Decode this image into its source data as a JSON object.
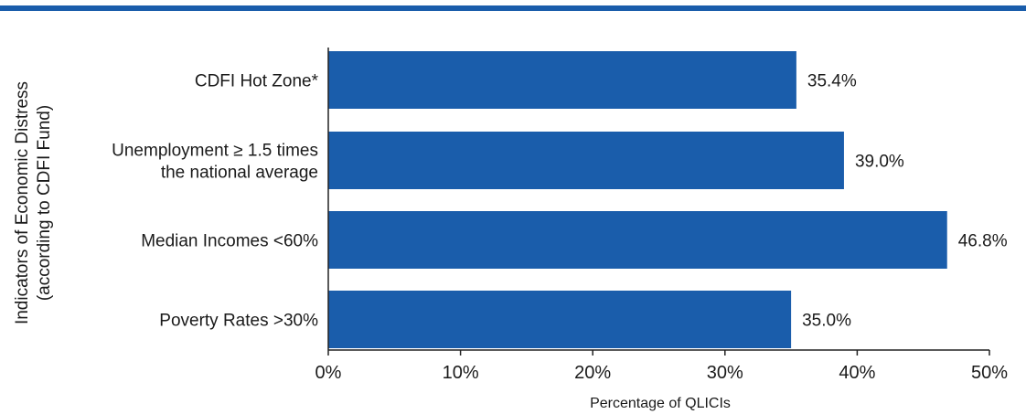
{
  "header": {
    "accent_color": "#1a5dab"
  },
  "chart_data": {
    "type": "bar",
    "orientation": "horizontal",
    "categories": [
      [
        "CDFI Hot Zone*"
      ],
      [
        "Unemployment ≥ 1.5 times",
        "the national average"
      ],
      [
        "Median Incomes <60%"
      ],
      [
        "Poverty Rates >30%"
      ]
    ],
    "values": [
      35.4,
      39.0,
      46.8,
      35.0
    ],
    "value_labels": [
      "35.4%",
      "39.0%",
      "46.8%",
      "35.0%"
    ],
    "xlim": [
      0,
      50
    ],
    "xticks": [
      0,
      10,
      20,
      30,
      40,
      50
    ],
    "xtick_labels": [
      "0%",
      "10%",
      "20%",
      "30%",
      "40%",
      "50%"
    ],
    "xlabel": "Percentage of QLICIs",
    "ylabel": [
      "Indicators of Economic Distress",
      "(according to CDFI Fund)"
    ],
    "bar_color": "#1a5dab",
    "grid": false
  }
}
